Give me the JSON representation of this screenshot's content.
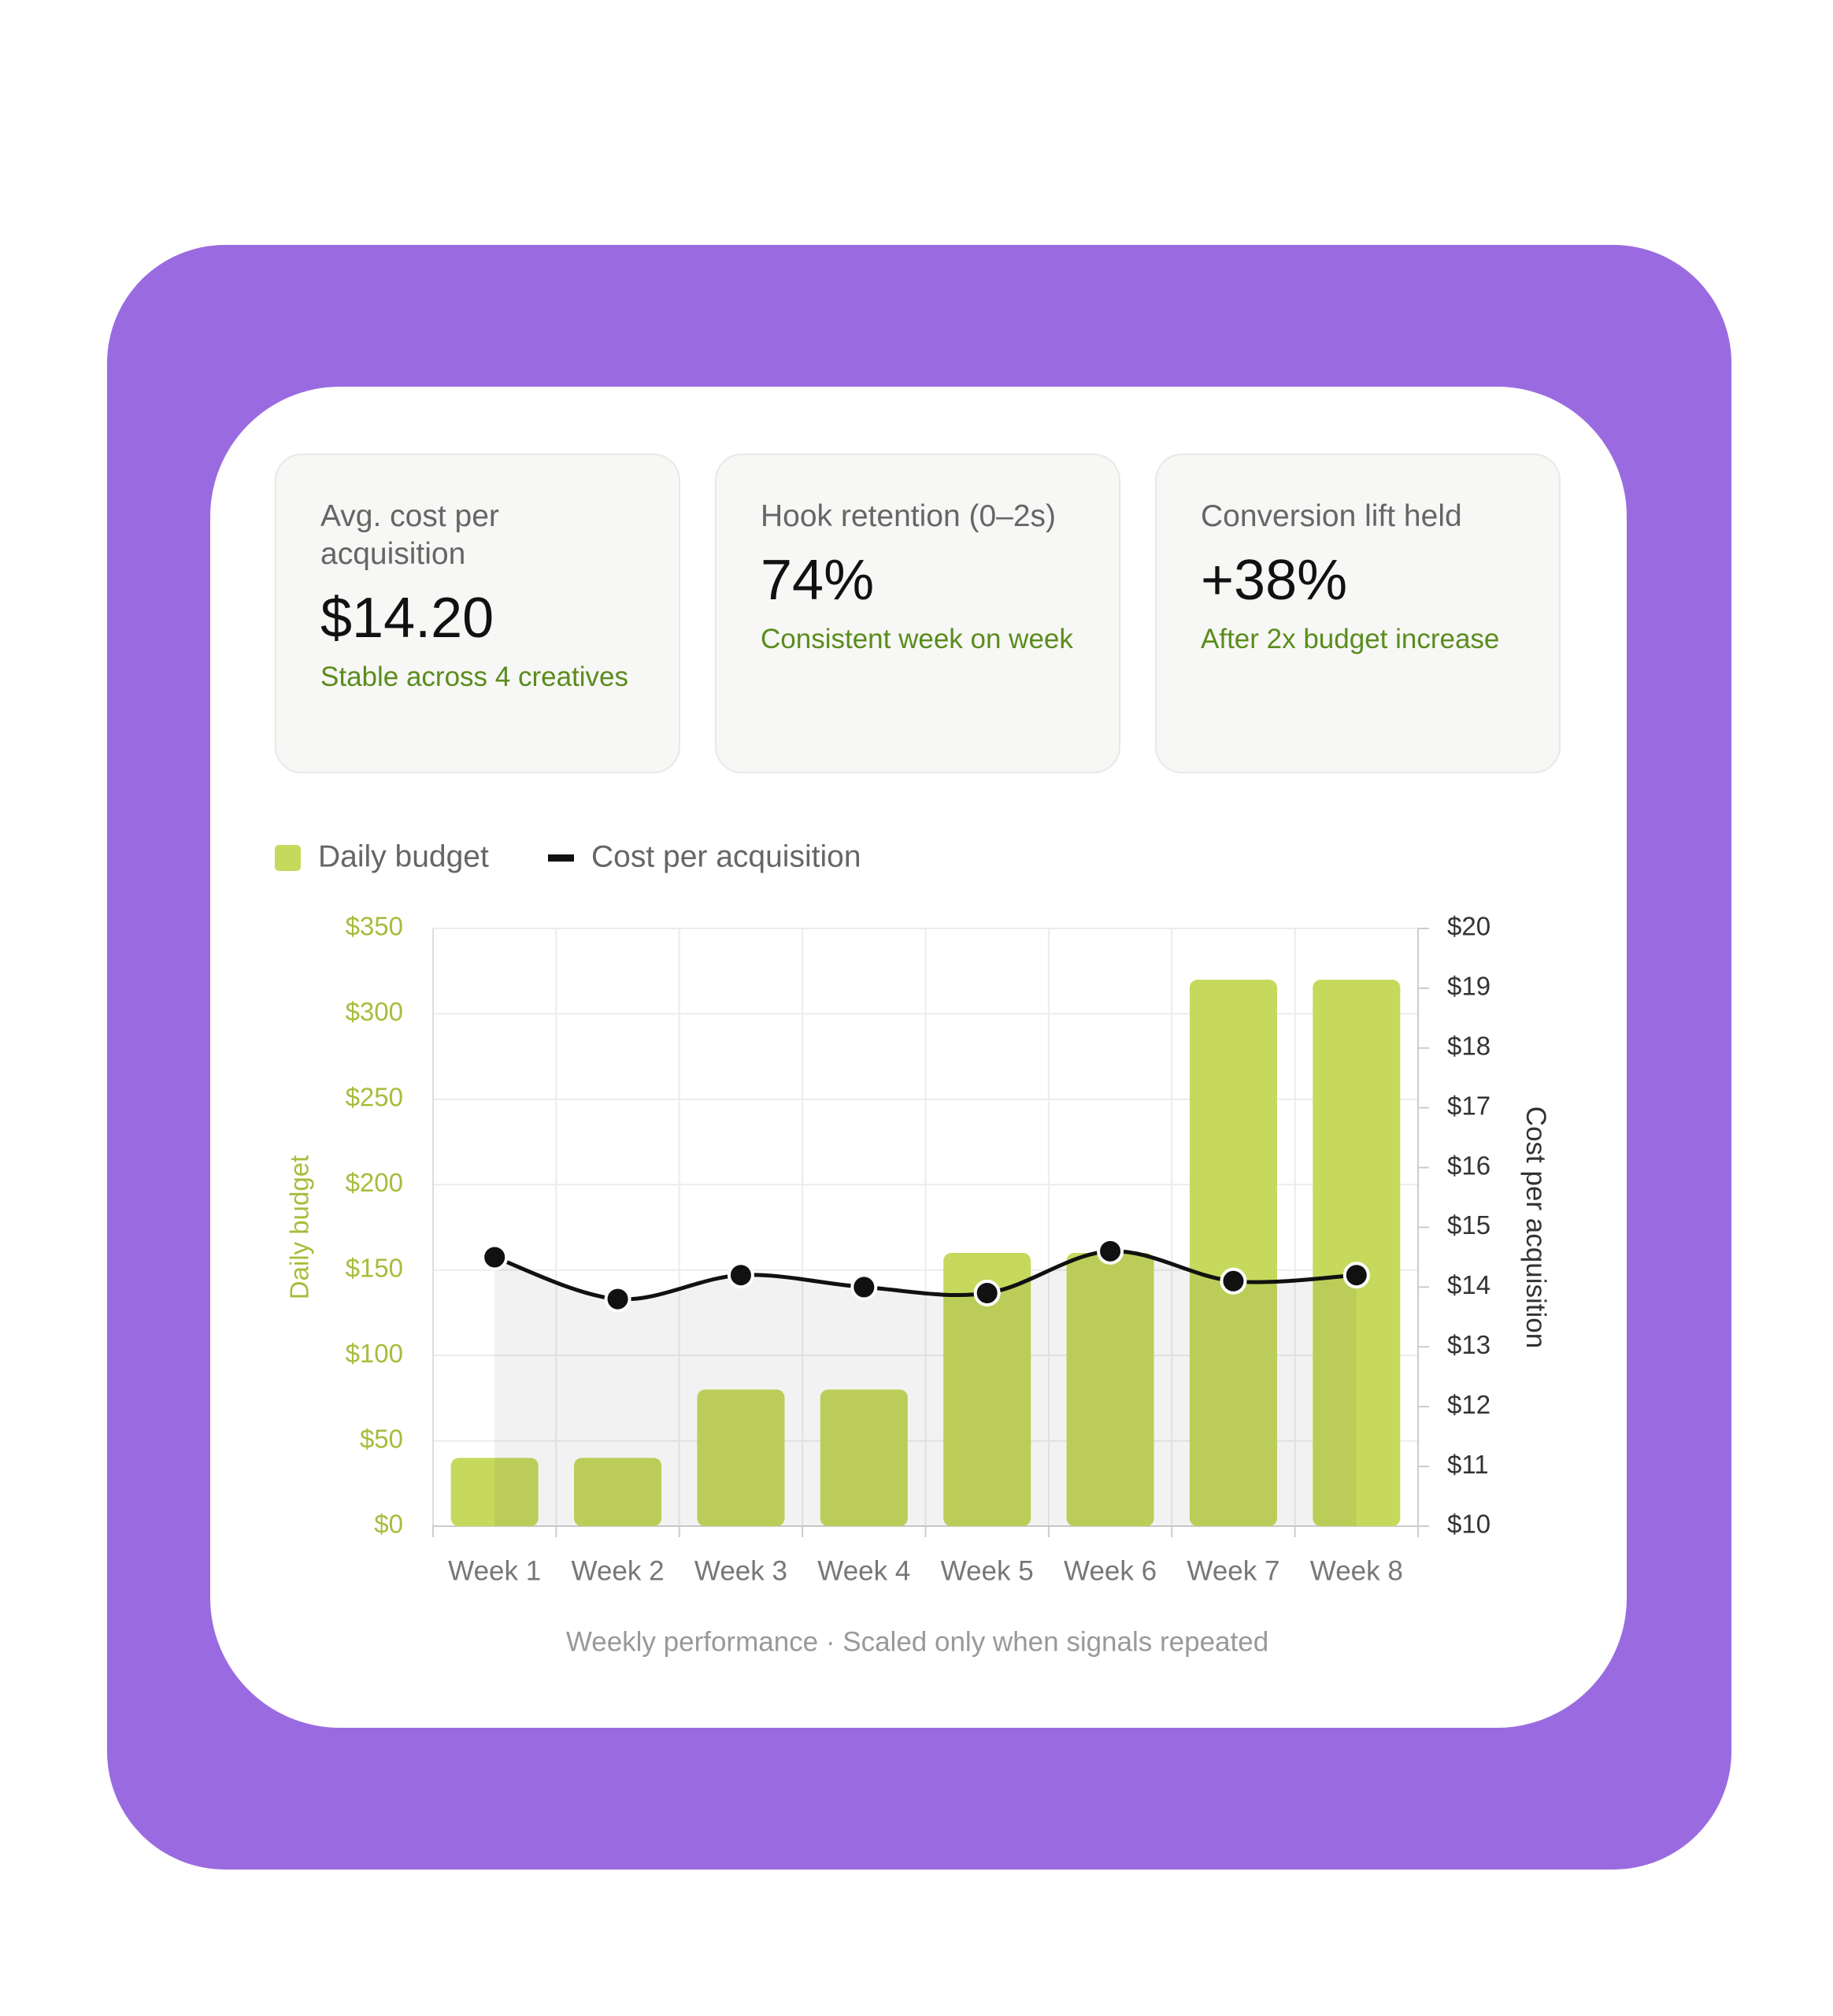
{
  "kpis": [
    {
      "label": "Avg. cost per acquisition",
      "value": "$14.20",
      "note": "Stable across 4 creatives"
    },
    {
      "label": "Hook retention (0–2s)",
      "value": "74%",
      "note": "Consistent week on week"
    },
    {
      "label": "Conversion lift held",
      "value": "+38%",
      "note": "After 2x budget increase"
    }
  ],
  "chart_data": {
    "type": "bar",
    "categories": [
      "Week 1",
      "Week 2",
      "Week 3",
      "Week 4",
      "Week 5",
      "Week 6",
      "Week 7",
      "Week 8"
    ],
    "series": [
      {
        "name": "Daily budget",
        "type": "bar",
        "color": "#c6d95d",
        "values": [
          40,
          40,
          80,
          80,
          160,
          160,
          320,
          320
        ]
      },
      {
        "name": "Cost per acquisition",
        "type": "line",
        "axis": "y2",
        "color": "#111111",
        "values": [
          14.5,
          13.8,
          14.2,
          14.0,
          13.9,
          14.6,
          14.1,
          14.2
        ]
      }
    ],
    "y_label": "Daily budget",
    "y2_label": "Cost per acquisition",
    "caption": "Weekly performance · Scaled only when signals repeated",
    "ylim": [
      0,
      350
    ],
    "yticks": [
      {
        "value": 0,
        "label": "$0"
      },
      {
        "value": 50,
        "label": "$50"
      },
      {
        "value": 100,
        "label": "$100"
      },
      {
        "value": 150,
        "label": "$150"
      },
      {
        "value": 200,
        "label": "$200"
      },
      {
        "value": 250,
        "label": "$250"
      },
      {
        "value": 300,
        "label": "$300"
      },
      {
        "value": 350,
        "label": "$350"
      }
    ],
    "y2lim": [
      10,
      20
    ],
    "y2ticks": [
      {
        "value": 10,
        "label": "$10"
      },
      {
        "value": 11,
        "label": "$11"
      },
      {
        "value": 12,
        "label": "$12"
      },
      {
        "value": 13,
        "label": "$13"
      },
      {
        "value": 14,
        "label": "$14"
      },
      {
        "value": 15,
        "label": "$15"
      },
      {
        "value": 16,
        "label": "$16"
      },
      {
        "value": 17,
        "label": "$17"
      },
      {
        "value": 18,
        "label": "$18"
      },
      {
        "value": 19,
        "label": "$19"
      },
      {
        "value": 20,
        "label": "$20"
      }
    ],
    "grid": true
  }
}
